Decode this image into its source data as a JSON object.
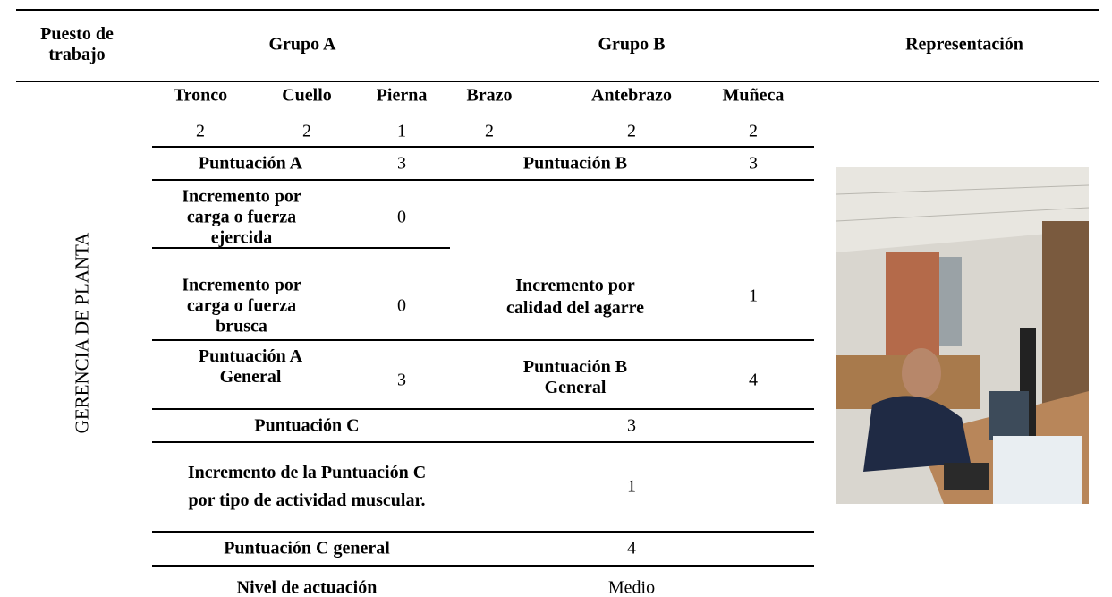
{
  "table": {
    "header": [
      "Puesto de trabajo",
      "Grupo A",
      "Grupo B",
      "Representación"
    ],
    "row_label": "GERENCIA DE PLANTA",
    "subheaders": [
      "Tronco",
      "Cuello",
      "Pierna",
      "Brazo",
      "Antebrazo",
      "Muñeca"
    ],
    "scores": [
      2,
      2,
      1,
      2,
      2,
      2
    ],
    "rows": [
      [
        "Puntuación A",
        3,
        "Puntuación B",
        3
      ],
      [
        "Incremento por carga o fuerza ejercida",
        0,
        "Incremento por calidad del agarre",
        1
      ],
      [
        "Incremento por carga o fuerza brusca",
        0
      ],
      [
        "Puntuación A General",
        3,
        "Puntuación B General",
        4
      ],
      [
        "Puntuación C",
        3
      ],
      [
        "Incremento de la Puntuación C por tipo de actividad muscular.",
        1
      ],
      [
        "Puntuación C general",
        4
      ],
      [
        "Nivel de actuación",
        "Medio"
      ]
    ]
  }
}
